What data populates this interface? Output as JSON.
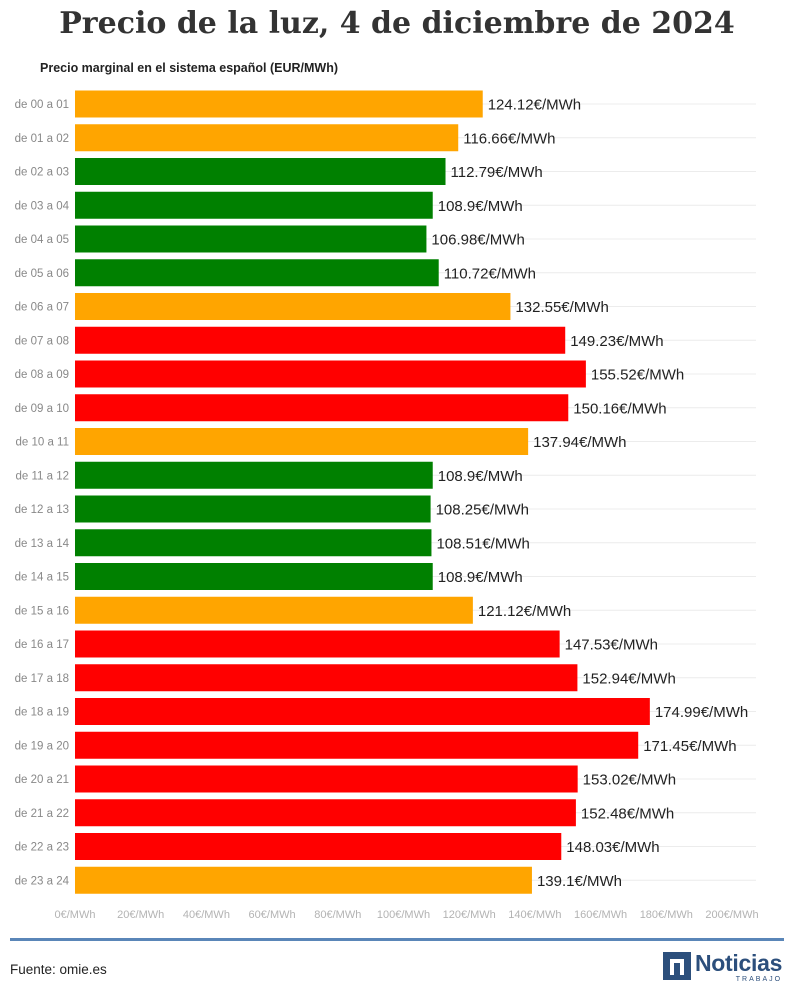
{
  "page": {
    "title": "Precio de la luz, 4 de diciembre de 2024",
    "subtitle": "Precio marginal en el sistema español (EUR/MWh)",
    "source": "Fuente: omie.es",
    "logo": {
      "word": "Noticias",
      "sub": "TRABAJO",
      "icon": "noticias-trabajo-logo-icon"
    }
  },
  "colors": {
    "low": "#008000",
    "mid": "#ffa500",
    "high": "#ff0000",
    "grid": "#ececec",
    "tick": "#b3b3b3",
    "category_label": "#888888",
    "value_label": "#222222",
    "footer_rule": "#5a86b8",
    "logo": "#2c4f7c"
  },
  "chart_data": {
    "type": "bar",
    "orientation": "horizontal",
    "title": "Precio de la luz, 4 de diciembre de 2024",
    "subtitle": "Precio marginal en el sistema español (EUR/MWh)",
    "xlabel": "",
    "ylabel": "",
    "xlim": [
      0,
      200
    ],
    "x_ticks": [
      0,
      20,
      40,
      60,
      80,
      100,
      120,
      140,
      160,
      180,
      200
    ],
    "x_tick_labels": [
      "0€/MWh",
      "20€/MWh",
      "40€/MWh",
      "60€/MWh",
      "80€/MWh",
      "100€/MWh",
      "120€/MWh",
      "140€/MWh",
      "160€/MWh",
      "180€/MWh",
      "200€/MWh"
    ],
    "grid": true,
    "legend": "none",
    "categories": [
      "de 00 a 01",
      "de 01 a 02",
      "de 02 a 03",
      "de 03 a 04",
      "de 04 a 05",
      "de 05 a 06",
      "de 06 a 07",
      "de 07 a 08",
      "de 08 a 09",
      "de 09 a 10",
      "de 10 a 11",
      "de 11 a 12",
      "de 12 a 13",
      "de 13 a 14",
      "de 14 a 15",
      "de 15 a 16",
      "de 16 a 17",
      "de 17 a 18",
      "de 18 a 19",
      "de 19 a 20",
      "de 20 a 21",
      "de 21 a 22",
      "de 22 a 23",
      "de 23 a 24"
    ],
    "values": [
      124.12,
      116.66,
      112.79,
      108.9,
      106.98,
      110.72,
      132.55,
      149.23,
      155.52,
      150.16,
      137.94,
      108.9,
      108.25,
      108.51,
      108.9,
      121.12,
      147.53,
      152.94,
      174.99,
      171.45,
      153.02,
      152.48,
      148.03,
      139.1
    ],
    "value_labels": [
      "124.12€/MWh",
      "116.66€/MWh",
      "112.79€/MWh",
      "108.9€/MWh",
      "106.98€/MWh",
      "110.72€/MWh",
      "132.55€/MWh",
      "149.23€/MWh",
      "155.52€/MWh",
      "150.16€/MWh",
      "137.94€/MWh",
      "108.9€/MWh",
      "108.25€/MWh",
      "108.51€/MWh",
      "108.9€/MWh",
      "121.12€/MWh",
      "147.53€/MWh",
      "152.94€/MWh",
      "174.99€/MWh",
      "171.45€/MWh",
      "153.02€/MWh",
      "152.48€/MWh",
      "148.03€/MWh",
      "139.1€/MWh"
    ],
    "bar_levels": [
      "mid",
      "mid",
      "low",
      "low",
      "low",
      "low",
      "mid",
      "high",
      "high",
      "high",
      "mid",
      "low",
      "low",
      "low",
      "low",
      "mid",
      "high",
      "high",
      "high",
      "high",
      "high",
      "high",
      "high",
      "mid"
    ]
  }
}
